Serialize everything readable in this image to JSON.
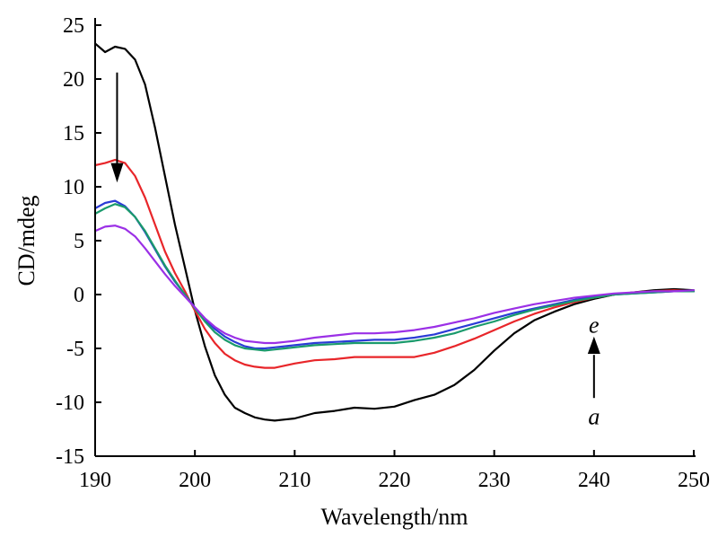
{
  "chart_data": {
    "type": "line",
    "xlabel": "Wavelength/nm",
    "ylabel": "CD/mdeg",
    "xlim": [
      190,
      250
    ],
    "ylim": [
      -15,
      25
    ],
    "x_ticks": [
      190,
      200,
      210,
      220,
      230,
      240,
      250
    ],
    "y_ticks": [
      25,
      20,
      15,
      10,
      5,
      0,
      -5,
      -10,
      -15
    ],
    "grid": false,
    "legend": "none",
    "annotations": [
      {
        "text": "a",
        "x": 240,
        "y": -11.3
      },
      {
        "text": "e",
        "x": 240,
        "y": -2.8
      }
    ],
    "series": [
      {
        "color": "#000000",
        "x": [
          190,
          191,
          192,
          193,
          194,
          195,
          196,
          197,
          198,
          199,
          200,
          201,
          202,
          203,
          204,
          205,
          206,
          207,
          208,
          209,
          210,
          212,
          214,
          216,
          218,
          220,
          222,
          224,
          226,
          228,
          230,
          232,
          234,
          236,
          238,
          240,
          242,
          244,
          246,
          248,
          250
        ],
        "values": [
          23.3,
          22.5,
          23.0,
          22.8,
          21.8,
          19.5,
          15.5,
          11.0,
          6.5,
          2.5,
          -1.5,
          -4.8,
          -7.5,
          -9.3,
          -10.5,
          -11.0,
          -11.4,
          -11.6,
          -11.7,
          -11.6,
          -11.5,
          -11.0,
          -10.8,
          -10.5,
          -10.6,
          -10.4,
          -9.8,
          -9.3,
          -8.4,
          -7.0,
          -5.2,
          -3.6,
          -2.4,
          -1.6,
          -0.9,
          -0.4,
          0.0,
          0.2,
          0.4,
          0.5,
          0.4
        ]
      },
      {
        "color": "#e8262a",
        "x": [
          190,
          191,
          192,
          193,
          194,
          195,
          196,
          197,
          198,
          199,
          200,
          201,
          202,
          203,
          204,
          205,
          206,
          207,
          208,
          209,
          210,
          212,
          214,
          216,
          218,
          220,
          222,
          224,
          226,
          228,
          230,
          232,
          234,
          236,
          238,
          240,
          242,
          244,
          246,
          248,
          250
        ],
        "values": [
          12.0,
          12.2,
          12.5,
          12.2,
          11.0,
          9.0,
          6.5,
          4.0,
          2.0,
          0.3,
          -1.5,
          -3.2,
          -4.5,
          -5.5,
          -6.1,
          -6.5,
          -6.7,
          -6.8,
          -6.8,
          -6.6,
          -6.4,
          -6.1,
          -6.0,
          -5.8,
          -5.8,
          -5.8,
          -5.8,
          -5.4,
          -4.8,
          -4.1,
          -3.3,
          -2.5,
          -1.8,
          -1.2,
          -0.7,
          -0.3,
          0.0,
          0.2,
          0.3,
          0.4,
          0.3
        ]
      },
      {
        "color": "#2b3bd6",
        "x": [
          190,
          191,
          192,
          193,
          194,
          195,
          196,
          197,
          198,
          199,
          200,
          201,
          202,
          203,
          204,
          205,
          206,
          207,
          208,
          209,
          210,
          212,
          214,
          216,
          218,
          220,
          222,
          224,
          226,
          228,
          230,
          232,
          234,
          236,
          238,
          240,
          242,
          244,
          246,
          248,
          250
        ],
        "values": [
          8.0,
          8.5,
          8.7,
          8.2,
          7.2,
          5.8,
          4.2,
          2.6,
          1.2,
          0.0,
          -1.2,
          -2.3,
          -3.2,
          -3.9,
          -4.4,
          -4.8,
          -5.0,
          -5.0,
          -4.9,
          -4.8,
          -4.7,
          -4.5,
          -4.4,
          -4.3,
          -4.2,
          -4.2,
          -4.0,
          -3.7,
          -3.2,
          -2.7,
          -2.2,
          -1.7,
          -1.3,
          -0.9,
          -0.5,
          -0.2,
          0.0,
          0.1,
          0.2,
          0.3,
          0.3
        ]
      },
      {
        "color": "#1a9a6c",
        "x": [
          190,
          191,
          192,
          193,
          194,
          195,
          196,
          197,
          198,
          199,
          200,
          201,
          202,
          203,
          204,
          205,
          206,
          207,
          208,
          209,
          210,
          212,
          214,
          216,
          218,
          220,
          222,
          224,
          226,
          228,
          230,
          232,
          234,
          236,
          238,
          240,
          242,
          244,
          246,
          248,
          250
        ],
        "values": [
          7.5,
          8.0,
          8.4,
          8.1,
          7.2,
          5.9,
          4.3,
          2.7,
          1.3,
          0.0,
          -1.3,
          -2.5,
          -3.5,
          -4.2,
          -4.7,
          -5.0,
          -5.1,
          -5.2,
          -5.1,
          -5.0,
          -4.9,
          -4.7,
          -4.6,
          -4.5,
          -4.5,
          -4.5,
          -4.3,
          -4.0,
          -3.6,
          -3.0,
          -2.5,
          -1.9,
          -1.4,
          -1.0,
          -0.6,
          -0.3,
          0.0,
          0.1,
          0.2,
          0.3,
          0.3
        ]
      },
      {
        "color": "#9b30e6",
        "x": [
          190,
          191,
          192,
          193,
          194,
          195,
          196,
          197,
          198,
          199,
          200,
          201,
          202,
          203,
          204,
          205,
          206,
          207,
          208,
          209,
          210,
          212,
          214,
          216,
          218,
          220,
          222,
          224,
          226,
          228,
          230,
          232,
          234,
          236,
          238,
          240,
          242,
          244,
          246,
          248,
          250
        ],
        "values": [
          5.9,
          6.3,
          6.4,
          6.1,
          5.4,
          4.3,
          3.1,
          1.9,
          0.8,
          -0.2,
          -1.2,
          -2.2,
          -3.0,
          -3.6,
          -4.0,
          -4.3,
          -4.4,
          -4.5,
          -4.5,
          -4.4,
          -4.3,
          -4.0,
          -3.8,
          -3.6,
          -3.6,
          -3.5,
          -3.3,
          -3.0,
          -2.6,
          -2.2,
          -1.7,
          -1.3,
          -0.9,
          -0.6,
          -0.3,
          -0.1,
          0.1,
          0.2,
          0.3,
          0.3,
          0.4
        ]
      }
    ]
  }
}
